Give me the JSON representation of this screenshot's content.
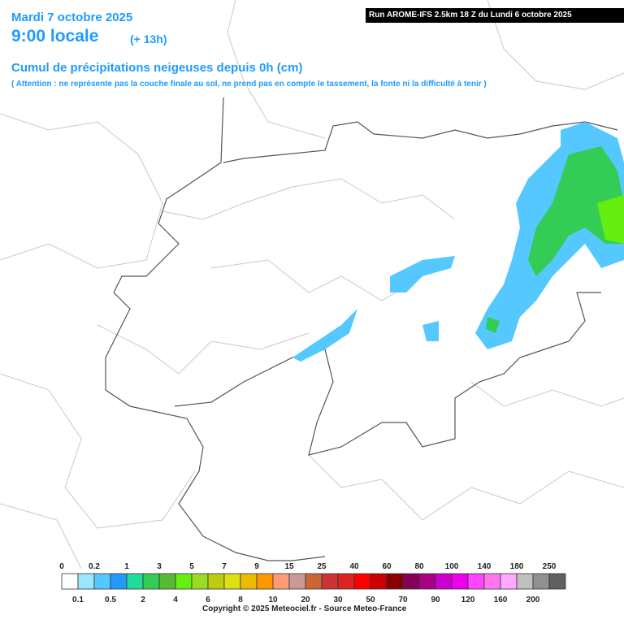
{
  "header": {
    "date": "Mardi 7 octobre 2025",
    "time": "9:00 locale",
    "offset": "(+ 13h)",
    "title": "Cumul de précipitations neigeuses depuis 0h (cm)",
    "note": "( Attention : ne représente pas la couche finale au sol, ne prend pas en compte le tassement, la fonte ni la difficulté à tenir )",
    "run": "Run AROME-IFS 2.5km 18 Z du Lundi 6 octobre 2025"
  },
  "legend": {
    "values": [
      0,
      0.1,
      0.2,
      0.5,
      1,
      2,
      3,
      4,
      5,
      6,
      7,
      8,
      9,
      10,
      15,
      20,
      25,
      30,
      40,
      50,
      60,
      70,
      80,
      90,
      100,
      120,
      140,
      160,
      180,
      200,
      250
    ],
    "colors": [
      "#ffffff",
      "#99e6ff",
      "#55c8ff",
      "#2299ff",
      "#22dd99",
      "#33cc55",
      "#55bb33",
      "#66ee11",
      "#99dd22",
      "#bbcc11",
      "#dde011",
      "#eebb00",
      "#ff9900",
      "#ff9977",
      "#cc9999",
      "#cc6633",
      "#cc3333",
      "#dd2222",
      "#ff0000",
      "#cc0000",
      "#880000",
      "#880055",
      "#aa0088",
      "#cc00cc",
      "#ee00ee",
      "#ff44ff",
      "#ff77ee",
      "#ffaaff",
      "#c0c0c0",
      "#909090",
      "#606060"
    ]
  },
  "footer": {
    "copyright": "Copyright © 2025 Meteociel.fr - Source Meteo-France"
  }
}
